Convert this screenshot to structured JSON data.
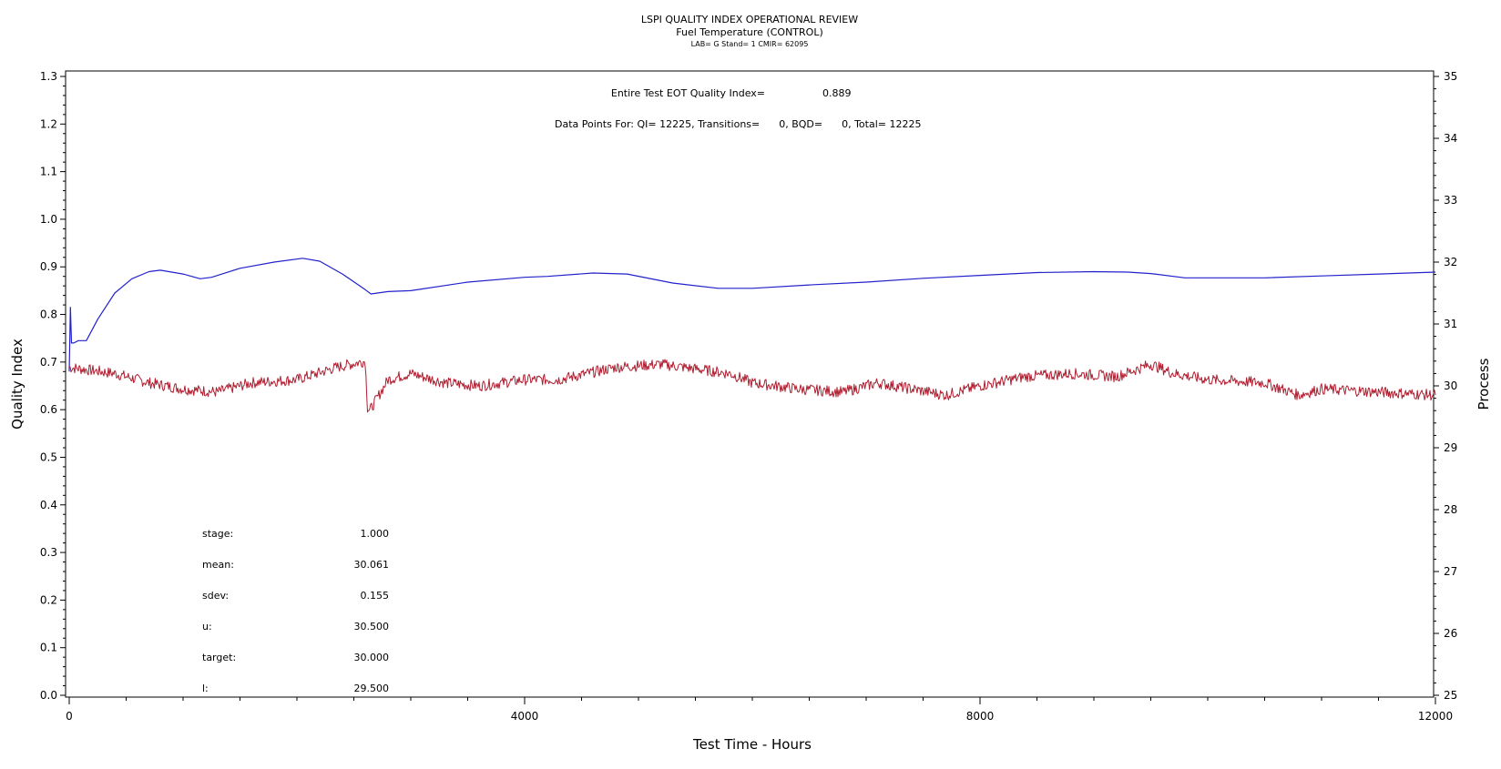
{
  "colors": {
    "qi_line": "#2222cc",
    "process_line": "#b01c2e",
    "axis": "#000000",
    "background": "#ffffff"
  },
  "header": {
    "title": "LSPI QUALITY INDEX OPERATIONAL REVIEW",
    "subtitle": "Fuel Temperature (CONTROL)",
    "detail": "LAB= G Stand= 1 CMIR= 62095"
  },
  "annotations": {
    "eot_label": "Entire Test EOT Quality Index=",
    "eot_value": "0.889",
    "points_text": "Data Points For: QI= 12225, Transitions=      0, BQD=      0, Total= 12225"
  },
  "stats": [
    {
      "label": "stage:",
      "value": "1.000"
    },
    {
      "label": "mean:",
      "value": "30.061"
    },
    {
      "label": "sdev:",
      "value": "0.155"
    },
    {
      "label": "u:",
      "value": "30.500"
    },
    {
      "label": "target:",
      "value": "30.000"
    },
    {
      "label": "l:",
      "value": "29.500"
    }
  ],
  "chart_data": {
    "type": "line",
    "xlabel": "Test Time - Hours",
    "ylabel": "Quality Index",
    "y2label": "Process",
    "xlim": [
      0,
      12000
    ],
    "ylim": [
      0,
      1.3
    ],
    "y2lim": [
      25,
      35
    ],
    "x_ticks": [
      "0",
      "4000",
      "8000",
      "12000"
    ],
    "y_ticks": [
      "0.0",
      "0.1",
      "0.2",
      "0.3",
      "0.4",
      "0.5",
      "0.6",
      "0.7",
      "0.8",
      "0.9",
      "1.0",
      "1.1",
      "1.2",
      "1.3"
    ],
    "y2_ticks": [
      "25",
      "26",
      "27",
      "28",
      "29",
      "30",
      "31",
      "32",
      "33",
      "34",
      "35"
    ],
    "grid": false,
    "series": [
      {
        "axis": "left",
        "color": "#2222cc",
        "x": [
          0,
          10,
          20,
          40,
          80,
          150,
          250,
          400,
          550,
          700,
          800,
          1000,
          1150,
          1250,
          1500,
          1800,
          2050,
          2200,
          2400,
          2600,
          2650,
          2800,
          3000,
          3500,
          4000,
          4200,
          4600,
          4900,
          5300,
          5700,
          6000,
          6500,
          7000,
          7500,
          8000,
          8500,
          9000,
          9300,
          9500,
          9800,
          10500,
          11000,
          11500,
          12000
        ],
        "values": [
          0.68,
          0.815,
          0.74,
          0.74,
          0.745,
          0.745,
          0.79,
          0.845,
          0.875,
          0.89,
          0.893,
          0.885,
          0.875,
          0.878,
          0.897,
          0.91,
          0.918,
          0.912,
          0.885,
          0.852,
          0.843,
          0.848,
          0.85,
          0.868,
          0.878,
          0.88,
          0.887,
          0.885,
          0.866,
          0.855,
          0.855,
          0.862,
          0.868,
          0.876,
          0.882,
          0.888,
          0.89,
          0.889,
          0.886,
          0.877,
          0.877,
          0.881,
          0.885,
          0.889
        ]
      },
      {
        "axis": "right",
        "color": "#b01c2e",
        "x": [
          0,
          400,
          700,
          1000,
          1300,
          1600,
          2000,
          2350,
          2600,
          2620,
          2640,
          2800,
          3000,
          3300,
          3600,
          4000,
          4300,
          4800,
          5200,
          5800,
          6000,
          6400,
          6800,
          7100,
          7400,
          7700,
          8000,
          8400,
          8800,
          9200,
          9500,
          9700,
          10000,
          10500,
          10800,
          11000,
          11500,
          12000
        ],
        "values": [
          30.3,
          30.2,
          30.05,
          29.95,
          29.9,
          30.05,
          30.1,
          30.3,
          30.4,
          29.65,
          29.6,
          30.1,
          30.2,
          30.05,
          30.0,
          30.1,
          30.1,
          30.3,
          30.35,
          30.2,
          30.05,
          29.95,
          29.9,
          30.05,
          29.95,
          29.85,
          30.0,
          30.15,
          30.2,
          30.15,
          30.35,
          30.2,
          30.1,
          30.05,
          29.85,
          29.95,
          29.9,
          29.85
        ]
      }
    ]
  }
}
